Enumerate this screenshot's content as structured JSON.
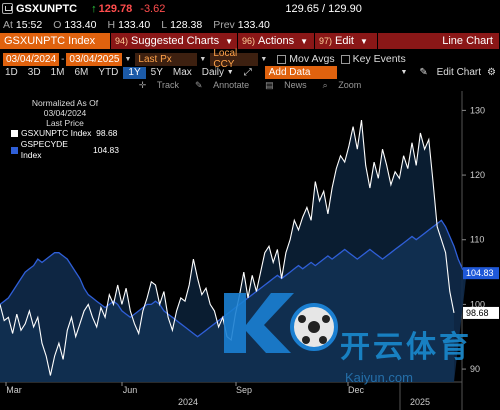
{
  "quote": {
    "ticker": "GSXUNPTC",
    "last": "129.78",
    "change": "-3.62",
    "bid_ask": "129.65 / 129.90",
    "at_label": "At",
    "at_time": "15:52",
    "open_label": "O",
    "open": "133.40",
    "high_label": "H",
    "high": "133.40",
    "low_label": "L",
    "low": "128.38",
    "prev_label": "Prev",
    "prev": "133.40"
  },
  "menu": {
    "security": "GSXUNPTC Index",
    "items": [
      {
        "num": "94)",
        "label": "Suggested Charts"
      },
      {
        "num": "96)",
        "label": "Actions"
      },
      {
        "num": "97)",
        "label": "Edit"
      }
    ],
    "chart_type": "Line Chart"
  },
  "range": {
    "start": "03/04/2024",
    "end": "03/04/2025",
    "field": "Last Px",
    "currency": "Local CCY",
    "mov_avgs": "Mov Avgs",
    "key_events": "Key Events",
    "add_data": "Add Data"
  },
  "periods": [
    "1D",
    "3D",
    "1M",
    "6M",
    "YTD",
    "1Y",
    "5Y",
    "Max"
  ],
  "active_period": "1Y",
  "frequency": "Daily",
  "toolbar_right": {
    "edit_chart": "Edit Chart"
  },
  "tools": [
    "Track",
    "Annotate",
    "News",
    "Zoom"
  ],
  "legend": {
    "normalized": "Normalized As Of 03/04/2024",
    "field": "Last Price",
    "series": [
      {
        "name": "GSXUNPTC Index",
        "value": "98.68"
      },
      {
        "name": "GSPECYDE Index",
        "value": "104.83"
      }
    ]
  },
  "watermark": {
    "text": "开云体育",
    "url": "Kaiyun.com"
  },
  "colors": {
    "accent": "#e0620e",
    "series1": "#ffffff",
    "series2": "#2f5fd8",
    "fill": "#0f2a4a",
    "badge1": "#ffffff",
    "badge2": "#1f58d8"
  },
  "chart_data": {
    "type": "line",
    "x_ticks": [
      "Mar",
      "Jun",
      "Sep",
      "Dec"
    ],
    "years": [
      "2024",
      "2025"
    ],
    "ylim": [
      88,
      133
    ],
    "y_ticks": [
      90,
      100,
      110,
      120,
      130
    ],
    "series": [
      {
        "name": "GSXUNPTC Index",
        "last": 98.68,
        "values": [
          100,
          97.5,
          98,
          95.5,
          98.5,
          96,
          97,
          99,
          96.5,
          98,
          94,
          92,
          89,
          92,
          94,
          91.5,
          96,
          98,
          95,
          97,
          99,
          100,
          98,
          96.5,
          99.5,
          98,
          101.5,
          100,
          103,
          100,
          102.5,
          99,
          97,
          95.5,
          99,
          101,
          103.5,
          103,
          100,
          102,
          98,
          96,
          99,
          101,
          100.5,
          103,
          107,
          104,
          101.5,
          102.5,
          100,
          99,
          96.5,
          98,
          95,
          94.5,
          98.5,
          101.5,
          105,
          101,
          104.5,
          102,
          105,
          108,
          109,
          106.5,
          108.5,
          104,
          108,
          110,
          113,
          111.5,
          113.5,
          115,
          113,
          119,
          116,
          117.5,
          114,
          118,
          121,
          123,
          122,
          124.5,
          127.5,
          124,
          128.5,
          121.5,
          118,
          122,
          119.5,
          124,
          121.5,
          118.5,
          120.5,
          119.5,
          123,
          121,
          125,
          121.5,
          126.5,
          124,
          125.5,
          119,
          112,
          110,
          108,
          102,
          98.68
        ]
      },
      {
        "name": "GSPECYDE Index",
        "last": 104.83,
        "values": [
          100,
          100.5,
          101,
          102,
          103,
          104,
          105,
          105.5,
          106,
          107,
          106.5,
          107,
          107.5,
          108,
          108,
          107.5,
          107,
          106,
          105,
          104,
          102.5,
          101.5,
          101,
          100.5,
          100,
          99.5,
          100,
          100.5,
          100,
          99,
          98.5,
          98,
          98.5,
          99,
          99.5,
          100,
          100,
          100.5,
          100,
          99,
          98.5,
          98,
          97.5,
          97,
          96.5,
          96,
          95.5,
          95,
          95.5,
          96,
          96.5,
          97,
          97.5,
          98,
          98.5,
          99,
          99.5,
          100,
          100.5,
          101,
          101.5,
          102,
          102.5,
          103,
          103.5,
          104,
          104.5,
          104,
          104.5,
          105,
          105.5,
          106,
          105.5,
          106,
          106.5,
          106,
          106.5,
          107,
          107.5,
          107,
          107.5,
          108,
          108.5,
          108,
          107.5,
          107,
          107.5,
          108,
          108.5,
          108,
          107.5,
          107,
          107.5,
          108,
          108.5,
          109,
          109.5,
          110,
          110.5,
          110,
          110.5,
          111,
          111.5,
          112,
          112.5,
          113,
          112,
          110.5,
          109,
          107,
          105.5,
          104.83
        ]
      }
    ]
  }
}
